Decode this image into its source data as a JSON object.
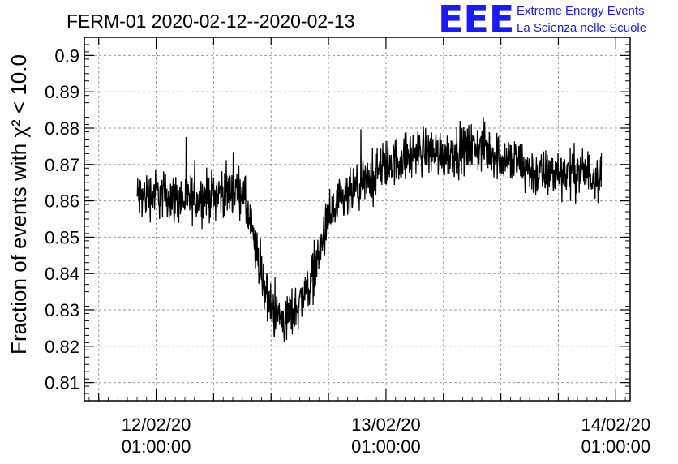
{
  "header": {
    "title": "FERM-01 2020-02-12--2020-02-13",
    "logo_letters": "EEE",
    "logo_line1": "Extreme Energy Events",
    "logo_line2": "La Scienza nelle Scuole",
    "logo_color": "#1a1aff"
  },
  "chart_data": {
    "type": "line",
    "title": "FERM-01 2020-02-12--2020-02-13",
    "ylabel": "Fraction of events with χ² < 10.0",
    "xlabel": "",
    "ylim": [
      0.805,
      0.905
    ],
    "xlim_hours": [
      -7.5,
      49.5
    ],
    "grid": true,
    "x_ticks": [
      {
        "line1": "12/02/20",
        "line2": "01:00:00",
        "hour": 0
      },
      {
        "line1": "13/02/20",
        "line2": "01:00:00",
        "hour": 24
      },
      {
        "line1": "14/02/20",
        "line2": "01:00:00",
        "hour": 48
      }
    ],
    "y_ticks": [
      "0.81",
      "0.82",
      "0.83",
      "0.84",
      "0.85",
      "0.86",
      "0.87",
      "0.88",
      "0.89",
      "0.9"
    ],
    "series": [
      {
        "color": "#000000",
        "x_hours": [
          -2,
          0,
          3,
          6,
          9,
          10.5,
          12,
          13.5,
          15,
          16.5,
          18,
          19.5,
          21,
          22.5,
          24,
          26,
          28,
          30,
          32,
          34,
          36,
          38,
          40,
          42,
          44,
          46.5
        ],
        "mean": [
          0.861,
          0.862,
          0.86,
          0.862,
          0.863,
          0.845,
          0.83,
          0.827,
          0.832,
          0.84,
          0.855,
          0.86,
          0.863,
          0.866,
          0.87,
          0.872,
          0.874,
          0.873,
          0.874,
          0.875,
          0.872,
          0.87,
          0.867,
          0.868,
          0.868,
          0.867
        ],
        "noise_amplitude": 0.01
      }
    ]
  }
}
